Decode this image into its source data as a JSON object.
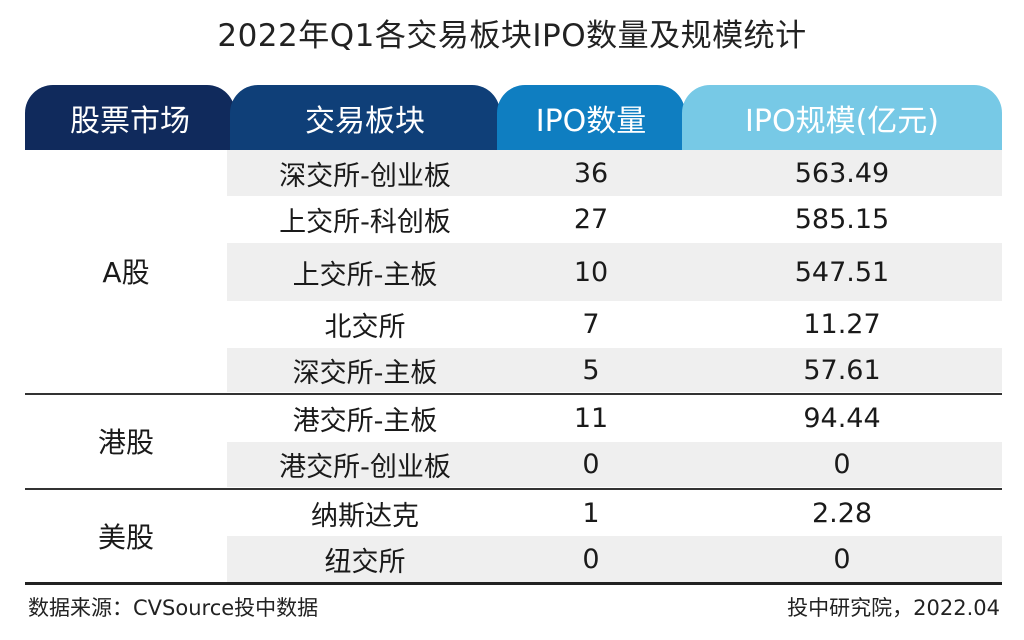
{
  "title": "2022年Q1各交易板块IPO数量及规模统计",
  "headers": {
    "market": "股票市场",
    "board": "交易板块",
    "count": "IPO数量",
    "size": "IPO规模(亿元)"
  },
  "markets": [
    {
      "label": "A股"
    },
    {
      "label": "港股"
    },
    {
      "label": "美股"
    }
  ],
  "rows": [
    {
      "board": "深交所-创业板",
      "count": "36",
      "size": "563.49"
    },
    {
      "board": "上交所-科创板",
      "count": "27",
      "size": "585.15"
    },
    {
      "board": "上交所-主板",
      "count": "10",
      "size": "547.51"
    },
    {
      "board": "北交所",
      "count": "7",
      "size": "11.27"
    },
    {
      "board": "深交所-主板",
      "count": "5",
      "size": "57.61"
    },
    {
      "board": "港交所-主板",
      "count": "11",
      "size": "94.44"
    },
    {
      "board": "港交所-创业板",
      "count": "0",
      "size": "0"
    },
    {
      "board": "纳斯达克",
      "count": "1",
      "size": "2.28"
    },
    {
      "board": "纽交所",
      "count": "0",
      "size": "0"
    }
  ],
  "footer": {
    "source": "数据来源：CVSource投中数据",
    "credit": "投中研究院，2022.04"
  }
}
